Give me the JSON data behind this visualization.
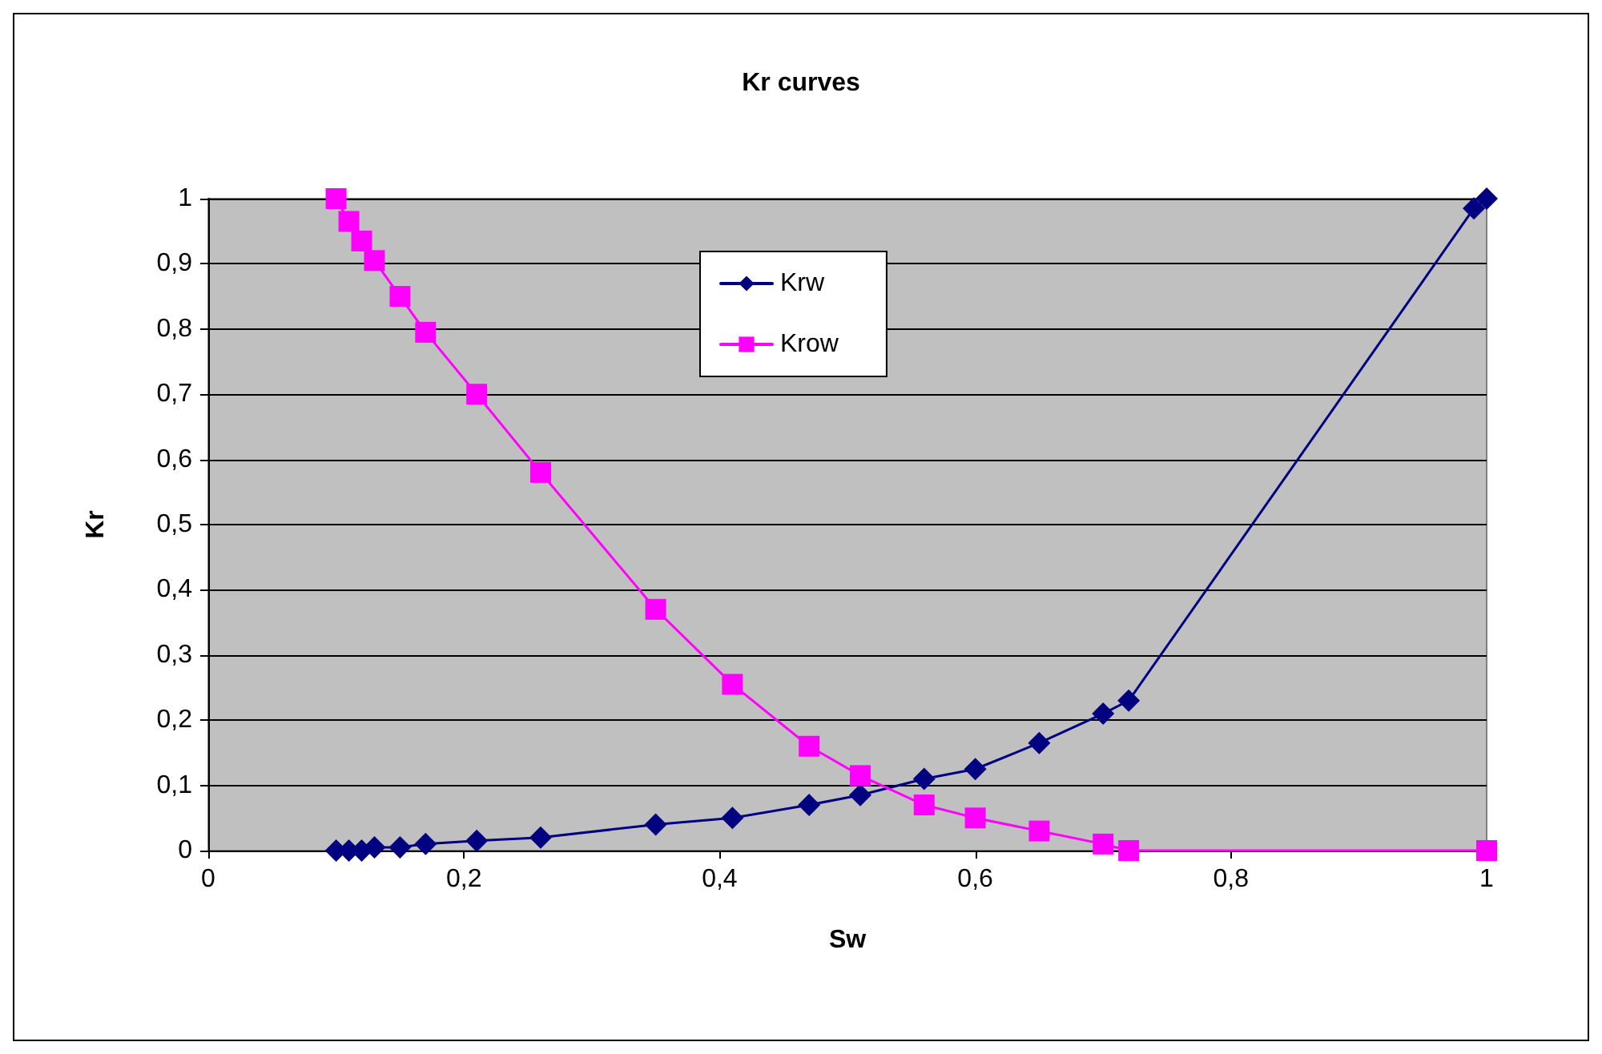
{
  "chart_data": {
    "type": "line",
    "title": "Kr curves",
    "xlabel": "Sw",
    "ylabel": "Kr",
    "x": [
      0.1,
      0.11,
      0.12,
      0.13,
      0.15,
      0.17,
      0.21,
      0.26,
      0.35,
      0.41,
      0.47,
      0.51,
      0.56,
      0.6,
      0.65,
      0.7,
      0.72,
      0.99,
      1.0
    ],
    "series": [
      {
        "name": "Krw",
        "color": "#000080",
        "marker": "diamond",
        "values": [
          0,
          0,
          0,
          0.005,
          0.005,
          0.01,
          0.015,
          0.02,
          0.04,
          0.05,
          0.07,
          0.085,
          0.11,
          0.125,
          0.165,
          0.21,
          0.23,
          0.985,
          1
        ]
      },
      {
        "name": "Krow",
        "color": "#ff00ff",
        "marker": "square",
        "values": [
          1,
          0.965,
          0.935,
          0.905,
          0.85,
          0.795,
          0.7,
          0.58,
          0.37,
          0.255,
          0.16,
          0.115,
          0.07,
          0.05,
          0.03,
          0.01,
          0,
          null,
          0
        ]
      }
    ],
    "xlim": [
      0,
      1
    ],
    "xticks": [
      0,
      {
        "value": 0.2,
        "label": "0,2"
      },
      {
        "value": 0.4,
        "label": "0,4"
      },
      {
        "value": 0.6,
        "label": "0,6"
      },
      {
        "value": 0.8,
        "label": "0,8"
      },
      1
    ],
    "ylim": [
      0,
      1
    ],
    "yticks": [
      0,
      {
        "value": 0.1,
        "label": "0,1"
      },
      {
        "value": 0.2,
        "label": "0,2"
      },
      {
        "value": 0.3,
        "label": "0,3"
      },
      {
        "value": 0.4,
        "label": "0,4"
      },
      {
        "value": 0.5,
        "label": "0,5"
      },
      {
        "value": 0.6,
        "label": "0,6"
      },
      {
        "value": 0.7,
        "label": "0,7"
      },
      {
        "value": 0.8,
        "label": "0,8"
      },
      {
        "value": 0.9,
        "label": "0,9"
      },
      1
    ],
    "grid": "y",
    "legend": "top",
    "line_style": "solid"
  }
}
